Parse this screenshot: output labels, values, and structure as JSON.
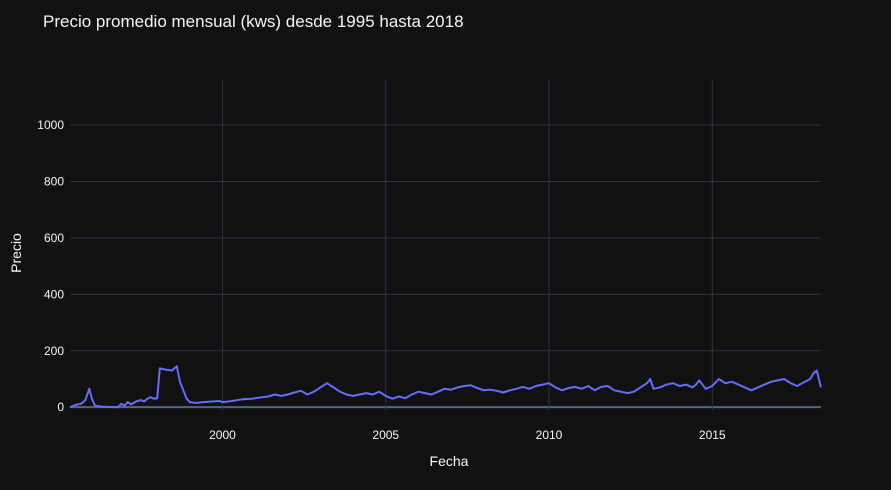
{
  "chart_data": {
    "type": "line",
    "title": "Precio promedio mensual (kws) desde 1995 hasta 2018",
    "xlabel": "Fecha",
    "ylabel": "Precio",
    "xlim": [
      1995.33,
      2018.33
    ],
    "ylim": [
      -10,
      1160
    ],
    "x_ticks": [
      2000,
      2005,
      2010,
      2015
    ],
    "x_tick_labels": [
      "2000",
      "2005",
      "2010",
      "2015"
    ],
    "y_ticks": [
      0,
      200,
      400,
      600,
      800,
      1000
    ],
    "y_tick_labels": [
      "0",
      "200",
      "400",
      "600",
      "800",
      "1000"
    ],
    "grid": true,
    "line_color": "#636efa",
    "background": "#111111",
    "grid_color": "#283442",
    "series": [
      {
        "points": [
          [
            1995.33,
            0
          ],
          [
            1995.5,
            8
          ],
          [
            1995.67,
            12
          ],
          [
            1995.8,
            25
          ],
          [
            1995.92,
            65
          ],
          [
            1996.0,
            30
          ],
          [
            1996.1,
            5
          ],
          [
            1996.3,
            2
          ],
          [
            1996.5,
            1
          ],
          [
            1996.8,
            0
          ],
          [
            1996.9,
            12
          ],
          [
            1997.0,
            5
          ],
          [
            1997.1,
            18
          ],
          [
            1997.2,
            10
          ],
          [
            1997.35,
            20
          ],
          [
            1997.5,
            25
          ],
          [
            1997.6,
            20
          ],
          [
            1997.7,
            30
          ],
          [
            1997.8,
            35
          ],
          [
            1997.9,
            30
          ],
          [
            1998.0,
            32
          ],
          [
            1998.08,
            138
          ],
          [
            1998.3,
            132
          ],
          [
            1998.45,
            130
          ],
          [
            1998.6,
            145
          ],
          [
            1998.7,
            90
          ],
          [
            1998.8,
            60
          ],
          [
            1998.9,
            30
          ],
          [
            1999.0,
            18
          ],
          [
            1999.2,
            15
          ],
          [
            1999.4,
            18
          ],
          [
            1999.7,
            20
          ],
          [
            1999.9,
            22
          ],
          [
            2000.0,
            18
          ],
          [
            2000.3,
            22
          ],
          [
            2000.6,
            28
          ],
          [
            2000.9,
            30
          ],
          [
            2001.2,
            35
          ],
          [
            2001.4,
            38
          ],
          [
            2001.6,
            45
          ],
          [
            2001.8,
            40
          ],
          [
            2002.0,
            45
          ],
          [
            2002.2,
            52
          ],
          [
            2002.4,
            58
          ],
          [
            2002.6,
            45
          ],
          [
            2002.8,
            55
          ],
          [
            2003.0,
            70
          ],
          [
            2003.2,
            85
          ],
          [
            2003.4,
            70
          ],
          [
            2003.6,
            55
          ],
          [
            2003.8,
            45
          ],
          [
            2004.0,
            40
          ],
          [
            2004.2,
            45
          ],
          [
            2004.4,
            50
          ],
          [
            2004.6,
            45
          ],
          [
            2004.8,
            55
          ],
          [
            2005.0,
            40
          ],
          [
            2005.2,
            30
          ],
          [
            2005.4,
            38
          ],
          [
            2005.6,
            32
          ],
          [
            2005.8,
            45
          ],
          [
            2006.0,
            55
          ],
          [
            2006.2,
            50
          ],
          [
            2006.4,
            45
          ],
          [
            2006.6,
            55
          ],
          [
            2006.8,
            65
          ],
          [
            2007.0,
            62
          ],
          [
            2007.2,
            70
          ],
          [
            2007.4,
            75
          ],
          [
            2007.6,
            78
          ],
          [
            2007.8,
            68
          ],
          [
            2008.0,
            60
          ],
          [
            2008.2,
            62
          ],
          [
            2008.4,
            58
          ],
          [
            2008.6,
            52
          ],
          [
            2008.8,
            60
          ],
          [
            2009.0,
            65
          ],
          [
            2009.2,
            72
          ],
          [
            2009.4,
            65
          ],
          [
            2009.6,
            75
          ],
          [
            2009.8,
            80
          ],
          [
            2010.0,
            85
          ],
          [
            2010.2,
            70
          ],
          [
            2010.4,
            60
          ],
          [
            2010.6,
            68
          ],
          [
            2010.8,
            72
          ],
          [
            2011.0,
            65
          ],
          [
            2011.2,
            75
          ],
          [
            2011.4,
            60
          ],
          [
            2011.6,
            72
          ],
          [
            2011.8,
            75
          ],
          [
            2012.0,
            60
          ],
          [
            2012.2,
            55
          ],
          [
            2012.4,
            50
          ],
          [
            2012.6,
            55
          ],
          [
            2012.8,
            70
          ],
          [
            2013.0,
            85
          ],
          [
            2013.1,
            100
          ],
          [
            2013.2,
            65
          ],
          [
            2013.4,
            70
          ],
          [
            2013.6,
            80
          ],
          [
            2013.8,
            85
          ],
          [
            2014.0,
            75
          ],
          [
            2014.2,
            80
          ],
          [
            2014.4,
            70
          ],
          [
            2014.5,
            80
          ],
          [
            2014.6,
            95
          ],
          [
            2014.8,
            65
          ],
          [
            2015.0,
            75
          ],
          [
            2015.2,
            100
          ],
          [
            2015.4,
            85
          ],
          [
            2015.6,
            90
          ],
          [
            2015.8,
            80
          ],
          [
            2016.0,
            70
          ],
          [
            2016.2,
            60
          ],
          [
            2016.4,
            70
          ],
          [
            2016.6,
            80
          ],
          [
            2016.8,
            90
          ],
          [
            2017.0,
            95
          ],
          [
            2017.2,
            100
          ],
          [
            2017.4,
            85
          ],
          [
            2017.6,
            75
          ],
          [
            2017.8,
            88
          ],
          [
            2018.0,
            100
          ],
          [
            2018.1,
            120
          ],
          [
            2018.2,
            130
          ],
          [
            2018.33,
            70
          ]
        ]
      }
    ]
  }
}
